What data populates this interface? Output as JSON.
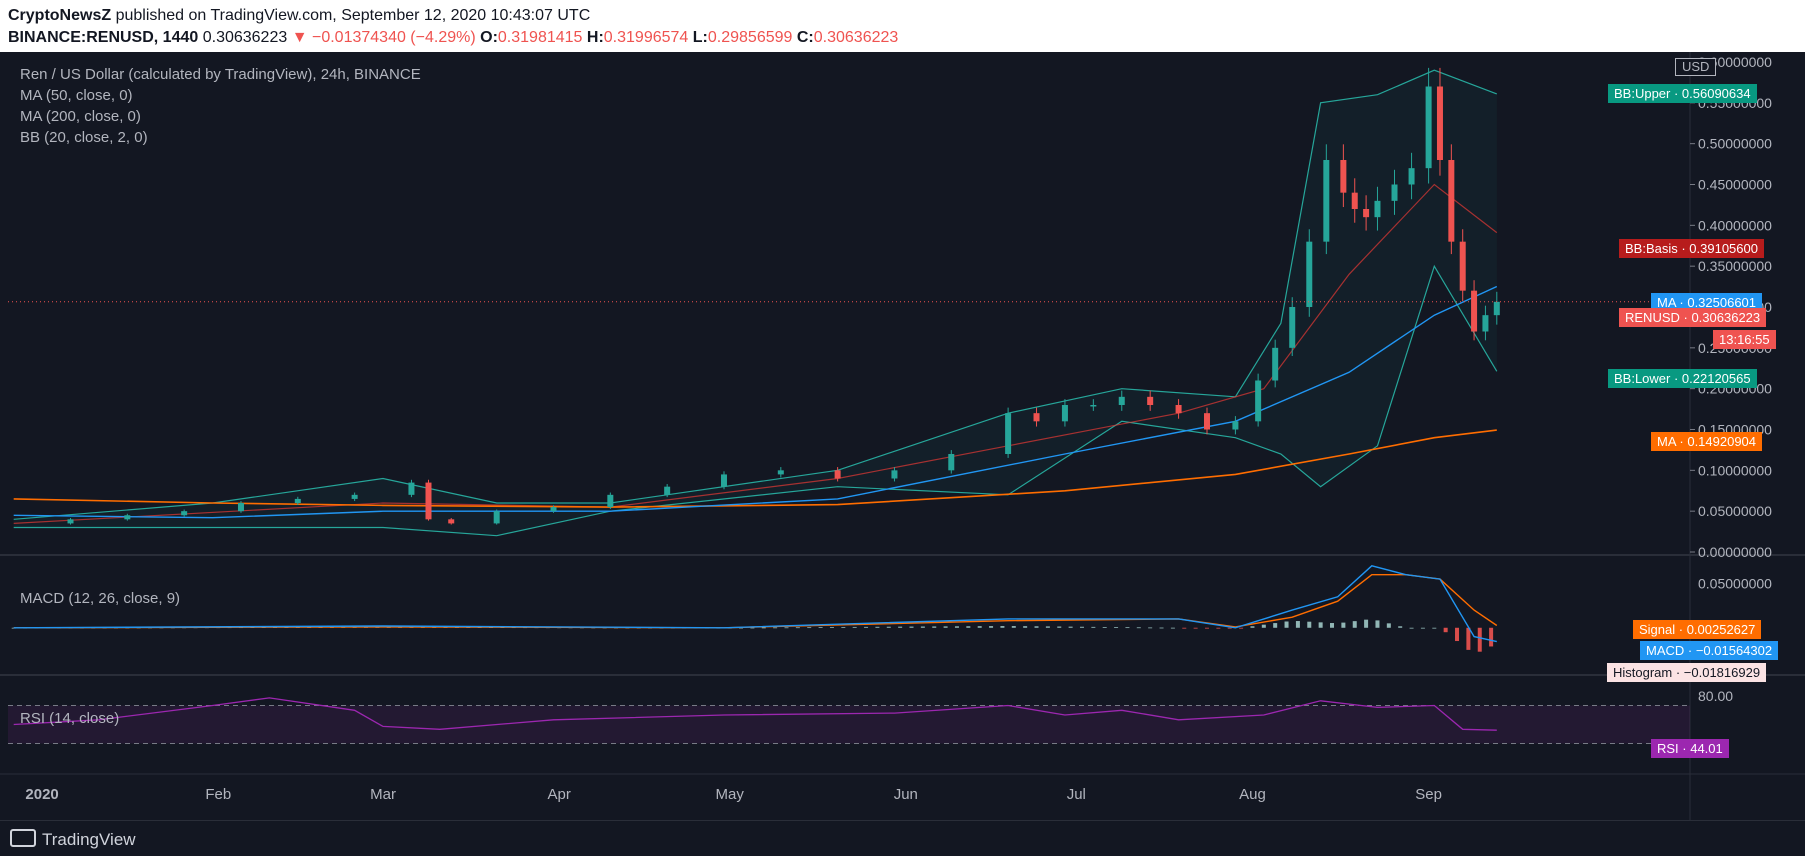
{
  "header": {
    "publisher": "CryptoNewsZ",
    "published_text": " published on TradingView.com, September 12, 2020 10:43:07 UTC",
    "symbol": "BINANCE:RENUSD, 1440",
    "last": "0.30636223",
    "change": "▼ −0.01374340 (−4.29%)",
    "o_label": "O:",
    "o": "0.31981415",
    "h_label": "H:",
    "h": "0.31996574",
    "l_label": "L:",
    "l": "0.29856599",
    "c_label": "C:",
    "c": "0.30636223"
  },
  "legend": {
    "title": "Ren / US Dollar (calculated by TradingView), 24h, BINANCE",
    "ma50": "MA (50, close, 0)",
    "ma200": "MA (200, close, 0)",
    "bb": "BB (20, close, 2, 0)",
    "macd": "MACD (12, 26, close, 9)",
    "rsi": "RSI (14, close)"
  },
  "tags": {
    "currency": "USD",
    "bb_upper": "BB:Upper · 0.56090634",
    "bb_basis": "BB:Basis · 0.39105600",
    "ma_50": "MA · 0.32506601",
    "renusd": "RENUSD · 0.30636223",
    "countdown": "13:16:55",
    "bb_lower": "BB:Lower · 0.22120565",
    "ma_200": "MA · 0.14920904",
    "signal": "Signal · 0.00252627",
    "macd": "MACD · −0.01564302",
    "histogram": "Histogram · −0.01816929",
    "rsi": "RSI · 44.01"
  },
  "footer": {
    "brand": "TradingView"
  },
  "colors": {
    "background": "#131722",
    "up": "#26a69a",
    "down": "#ef5350",
    "ma50": "#2196f3",
    "ma200": "#ff6d00",
    "bb": "#26a69a",
    "bb_basis": "#e53935",
    "macd": "#2196f3",
    "signal": "#ff6d00",
    "rsi": "#9c27b0"
  },
  "chart_data": {
    "type": "line",
    "title": "Ren / US Dollar (calculated by TradingView), 24h, BINANCE",
    "price_axis": {
      "unit": "USD",
      "ylim": [
        0,
        0.6
      ],
      "ticks": [
        "0.60000000",
        "0.55000000",
        "0.50000000",
        "0.45000000",
        "0.40000000",
        "0.35000000",
        "0.30000000",
        "0.25000000",
        "0.20000000",
        "0.15000000",
        "0.10000000",
        "0.05000000",
        "0.00000000"
      ],
      "tick_values": [
        0.6,
        0.55,
        0.5,
        0.45,
        0.4,
        0.35,
        0.3,
        0.25,
        0.2,
        0.15,
        0.1,
        0.05,
        0.0
      ]
    },
    "macd_axis": {
      "ticks": [
        "0.05000000"
      ],
      "tick_values": [
        0.05
      ],
      "ylim": [
        -0.05,
        0.08
      ]
    },
    "rsi_axis": {
      "ticks": [
        "80.00"
      ],
      "tick_values": [
        80
      ],
      "ylim": [
        0,
        100
      ],
      "bands": [
        70,
        30
      ]
    },
    "time_axis": {
      "labels": [
        "2020",
        "Feb",
        "Mar",
        "Apr",
        "May",
        "Jun",
        "Jul",
        "Aug",
        "Sep"
      ],
      "label_days": [
        0,
        31,
        60,
        91,
        121,
        152,
        182,
        213,
        244
      ],
      "range_days": [
        -6,
        290
      ]
    },
    "price_series": {
      "name": "RENUSD close",
      "x_days": [
        -5,
        5,
        15,
        25,
        35,
        45,
        55,
        65,
        68,
        72,
        80,
        90,
        100,
        110,
        120,
        130,
        140,
        150,
        160,
        170,
        175,
        180,
        185,
        190,
        195,
        200,
        205,
        210,
        214,
        217,
        220,
        223,
        226,
        229,
        231,
        233,
        235,
        238,
        241,
        244,
        246,
        248,
        250,
        252,
        254,
        256
      ],
      "values": [
        0.035,
        0.04,
        0.045,
        0.05,
        0.06,
        0.065,
        0.07,
        0.085,
        0.04,
        0.035,
        0.05,
        0.055,
        0.07,
        0.08,
        0.095,
        0.1,
        0.09,
        0.1,
        0.12,
        0.17,
        0.16,
        0.18,
        0.18,
        0.19,
        0.18,
        0.17,
        0.15,
        0.16,
        0.21,
        0.25,
        0.3,
        0.38,
        0.48,
        0.44,
        0.42,
        0.41,
        0.43,
        0.45,
        0.47,
        0.57,
        0.48,
        0.38,
        0.32,
        0.27,
        0.29,
        0.30636223
      ]
    },
    "ma50": {
      "x_days": [
        -5,
        30,
        60,
        100,
        140,
        180,
        210,
        230,
        245,
        256
      ],
      "values": [
        0.045,
        0.042,
        0.05,
        0.05,
        0.065,
        0.12,
        0.16,
        0.22,
        0.29,
        0.32506601
      ]
    },
    "ma200": {
      "x_days": [
        -5,
        30,
        60,
        100,
        140,
        180,
        210,
        230,
        245,
        256
      ],
      "values": [
        0.065,
        0.06,
        0.057,
        0.055,
        0.058,
        0.075,
        0.095,
        0.12,
        0.14,
        0.14920904
      ]
    },
    "bb_upper": {
      "x_days": [
        -5,
        30,
        60,
        80,
        100,
        140,
        170,
        190,
        210,
        218,
        225,
        235,
        245,
        256
      ],
      "values": [
        0.04,
        0.06,
        0.09,
        0.06,
        0.06,
        0.1,
        0.17,
        0.2,
        0.19,
        0.28,
        0.55,
        0.56,
        0.59,
        0.56090634
      ]
    },
    "bb_lower": {
      "x_days": [
        -5,
        30,
        60,
        80,
        100,
        140,
        170,
        190,
        210,
        218,
        225,
        235,
        245,
        256
      ],
      "values": [
        0.03,
        0.03,
        0.03,
        0.02,
        0.05,
        0.08,
        0.07,
        0.16,
        0.14,
        0.12,
        0.08,
        0.13,
        0.35,
        0.22120565
      ]
    },
    "bb_basis": {
      "x_days": [
        -5,
        60,
        100,
        140,
        170,
        200,
        215,
        230,
        245,
        256
      ],
      "values": [
        0.035,
        0.06,
        0.055,
        0.09,
        0.13,
        0.17,
        0.2,
        0.34,
        0.45,
        0.391056
      ]
    },
    "macd_line": {
      "x_days": [
        -5,
        60,
        120,
        170,
        200,
        210,
        220,
        228,
        234,
        240,
        246,
        252,
        256
      ],
      "values": [
        0,
        0.002,
        0,
        0.01,
        0.01,
        0,
        0.02,
        0.035,
        0.07,
        0.06,
        0.055,
        -0.01,
        -0.01564302
      ]
    },
    "signal_line": {
      "x_days": [
        -5,
        60,
        120,
        170,
        200,
        210,
        220,
        228,
        234,
        240,
        246,
        252,
        256
      ],
      "values": [
        0,
        0.001,
        0,
        0.008,
        0.01,
        0.001,
        0.012,
        0.03,
        0.06,
        0.06,
        0.055,
        0.02,
        0.00252627
      ]
    },
    "rsi": {
      "x_days": [
        -5,
        10,
        30,
        40,
        55,
        60,
        70,
        90,
        120,
        150,
        170,
        180,
        190,
        200,
        215,
        225,
        235,
        245,
        250,
        256
      ],
      "values": [
        50,
        55,
        70,
        78,
        65,
        48,
        45,
        55,
        60,
        62,
        70,
        60,
        65,
        55,
        60,
        75,
        68,
        70,
        45,
        44.01
      ]
    }
  }
}
